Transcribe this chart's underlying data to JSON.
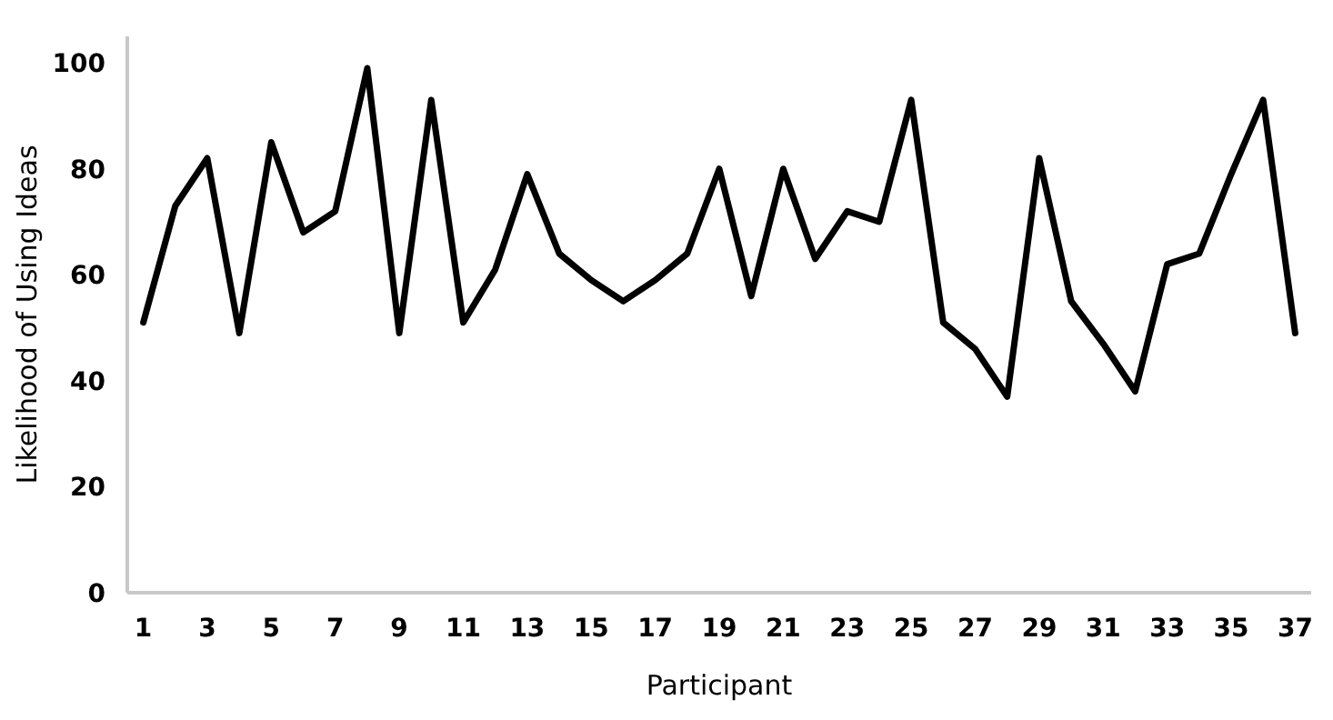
{
  "chart_data": {
    "type": "line",
    "xlabel": "Participant",
    "ylabel": "Likelihood of Using Ideas",
    "x": [
      1,
      2,
      3,
      4,
      5,
      6,
      7,
      8,
      9,
      10,
      11,
      12,
      13,
      14,
      15,
      16,
      17,
      18,
      19,
      20,
      21,
      22,
      23,
      24,
      25,
      26,
      27,
      28,
      29,
      30,
      31,
      32,
      33,
      34,
      35,
      36,
      37
    ],
    "series": [
      {
        "color": "#000000",
        "values": [
          51,
          73,
          82,
          49,
          85,
          68,
          72,
          99,
          49,
          93,
          51,
          61,
          79,
          64,
          59,
          55,
          59,
          64,
          80,
          56,
          80,
          63,
          72,
          70,
          93,
          51,
          46,
          37,
          82,
          55,
          47,
          38,
          62,
          64,
          79,
          93,
          49
        ]
      }
    ],
    "xlim": [
      0.5,
      37.5
    ],
    "xticks": [
      1,
      3,
      5,
      7,
      9,
      11,
      13,
      15,
      17,
      19,
      21,
      23,
      25,
      27,
      29,
      31,
      33,
      35,
      37
    ],
    "ylim": [
      0,
      105
    ],
    "yticks": [
      0,
      20,
      40,
      60,
      80,
      100
    ],
    "grid": false,
    "marker": "none",
    "line_style": "solid"
  }
}
